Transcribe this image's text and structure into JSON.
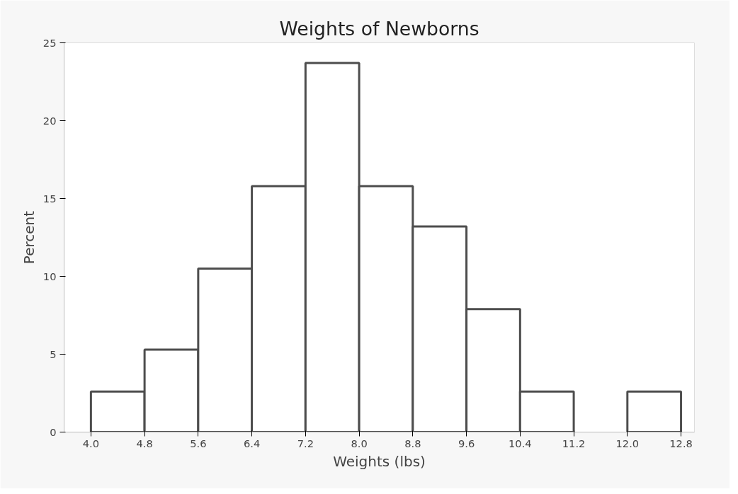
{
  "chart_data": {
    "type": "histogram",
    "title": "Weights of Newborns",
    "xlabel": "Weights (lbs)",
    "ylabel": "Percent",
    "bins": [
      4.0,
      4.8,
      5.6,
      6.4,
      7.2,
      8.0,
      8.8,
      9.6,
      10.4,
      11.2,
      12.0,
      12.8
    ],
    "values": [
      2.6,
      5.3,
      10.5,
      15.8,
      23.7,
      15.8,
      13.2,
      7.9,
      2.6,
      0,
      2.6
    ],
    "color": "#ffffff",
    "xlim": [
      3.6,
      13.0
    ],
    "ylim": [
      0,
      25
    ],
    "xticks": [
      {
        "value": 4.0,
        "label": "4.0"
      },
      {
        "value": 4.8,
        "label": "4.8"
      },
      {
        "value": 5.6,
        "label": "5.6"
      },
      {
        "value": 6.4,
        "label": "6.4"
      },
      {
        "value": 7.2,
        "label": "7.2"
      },
      {
        "value": 8.0,
        "label": "8.0"
      },
      {
        "value": 8.8,
        "label": "8.8"
      },
      {
        "value": 9.6,
        "label": "9.6"
      },
      {
        "value": 10.4,
        "label": "10.4"
      },
      {
        "value": 11.2,
        "label": "11.2"
      },
      {
        "value": 12.0,
        "label": "12.0"
      },
      {
        "value": 12.8,
        "label": "12.8"
      }
    ],
    "yticks": [
      0,
      5,
      10,
      15,
      20,
      25
    ]
  }
}
